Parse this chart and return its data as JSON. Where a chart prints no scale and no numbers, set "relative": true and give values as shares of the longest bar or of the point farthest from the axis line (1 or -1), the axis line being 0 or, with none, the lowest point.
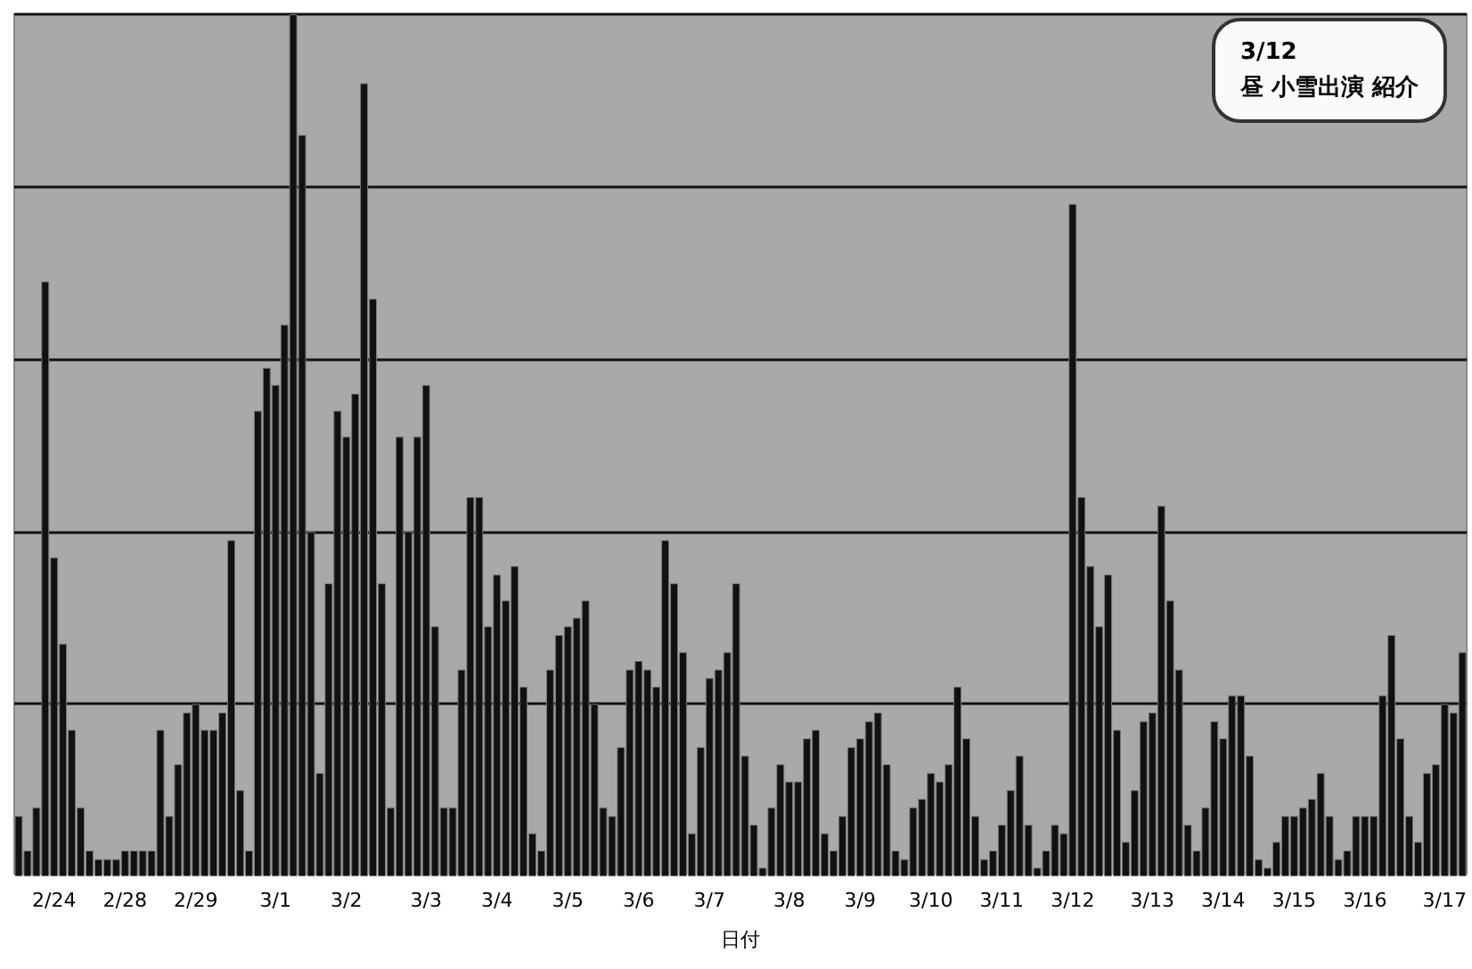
{
  "chart_data": {
    "type": "bar",
    "relative": true,
    "xlabel": "日付",
    "color": "#111111",
    "grid": "y",
    "annotations": [
      "3/12\n昼 小雪出演 紹介"
    ],
    "categories": [
      null,
      null,
      null,
      null,
      "2/24",
      null,
      null,
      null,
      null,
      null,
      null,
      null,
      "2/28",
      null,
      null,
      null,
      null,
      null,
      null,
      null,
      "2/29",
      null,
      null,
      null,
      null,
      null,
      null,
      null,
      null,
      "3/1",
      null,
      null,
      null,
      null,
      null,
      null,
      null,
      "3/2",
      null,
      null,
      null,
      null,
      null,
      null,
      null,
      null,
      "3/3",
      null,
      null,
      null,
      null,
      null,
      null,
      null,
      "3/4",
      null,
      null,
      null,
      null,
      null,
      null,
      null,
      "3/5",
      null,
      null,
      null,
      null,
      null,
      null,
      null,
      "3/6",
      null,
      null,
      null,
      null,
      null,
      null,
      null,
      "3/7",
      null,
      null,
      null,
      null,
      null,
      null,
      null,
      null,
      "3/8",
      null,
      null,
      null,
      null,
      null,
      null,
      null,
      "3/9",
      null,
      null,
      null,
      null,
      null,
      null,
      null,
      "3/10",
      null,
      null,
      null,
      null,
      null,
      null,
      null,
      "3/11",
      null,
      null,
      null,
      null,
      null,
      null,
      null,
      "3/12",
      null,
      null,
      null,
      null,
      null,
      null,
      null,
      null,
      "3/13",
      null,
      null,
      null,
      null,
      null,
      null,
      null,
      "3/14",
      null,
      null,
      null,
      null,
      null,
      null,
      null,
      "3/15",
      null,
      null,
      null,
      null,
      null,
      null,
      null,
      "3/16",
      null,
      null,
      null,
      null,
      null,
      null,
      null,
      null,
      "3/17",
      null,
      null
    ],
    "values": [
      0.07,
      0.03,
      0.08,
      0.69,
      0.37,
      0.27,
      0.17,
      0.08,
      0.03,
      0.02,
      0.02,
      0.02,
      0.03,
      0.03,
      0.03,
      0.03,
      0.17,
      0.07,
      0.13,
      0.19,
      0.2,
      0.17,
      0.17,
      0.19,
      0.39,
      0.1,
      0.03,
      0.54,
      0.59,
      0.57,
      0.64,
      1,
      0.86,
      0.4,
      0.12,
      0.34,
      0.54,
      0.51,
      0.56,
      0.92,
      0.67,
      0.34,
      0.08,
      0.51,
      0.4,
      0.51,
      0.57,
      0.29,
      0.08,
      0.08,
      0.24,
      0.44,
      0.44,
      0.29,
      0.35,
      0.32,
      0.36,
      0.22,
      0.05,
      0.03,
      0.24,
      0.28,
      0.29,
      0.3,
      0.32,
      0.2,
      0.08,
      0.07,
      0.15,
      0.24,
      0.25,
      0.24,
      0.22,
      0.39,
      0.34,
      0.26,
      0.05,
      0.15,
      0.23,
      0.24,
      0.26,
      0.34,
      0.14,
      0.06,
      0.01,
      0.08,
      0.13,
      0.11,
      0.11,
      0.16,
      0.17,
      0.05,
      0.03,
      0.07,
      0.15,
      0.16,
      0.18,
      0.19,
      0.13,
      0.03,
      0.02,
      0.08,
      0.09,
      0.12,
      0.11,
      0.13,
      0.22,
      0.16,
      0.07,
      0.02,
      0.03,
      0.06,
      0.1,
      0.14,
      0.06,
      0.01,
      0.03,
      0.06,
      0.05,
      0.78,
      0.44,
      0.36,
      0.29,
      0.35,
      0.17,
      0.04,
      0.1,
      0.18,
      0.19,
      0.43,
      0.32,
      0.24,
      0.06,
      0.03,
      0.08,
      0.18,
      0.16,
      0.21,
      0.21,
      0.14,
      0.02,
      0.01,
      0.04,
      0.07,
      0.07,
      0.08,
      0.09,
      0.12,
      0.07,
      0.02,
      0.03,
      0.07,
      0.07,
      0.07,
      0.21,
      0.28,
      0.16,
      0.07,
      0.04,
      0.12,
      0.13,
      0.2,
      0.19,
      0.26
    ]
  }
}
